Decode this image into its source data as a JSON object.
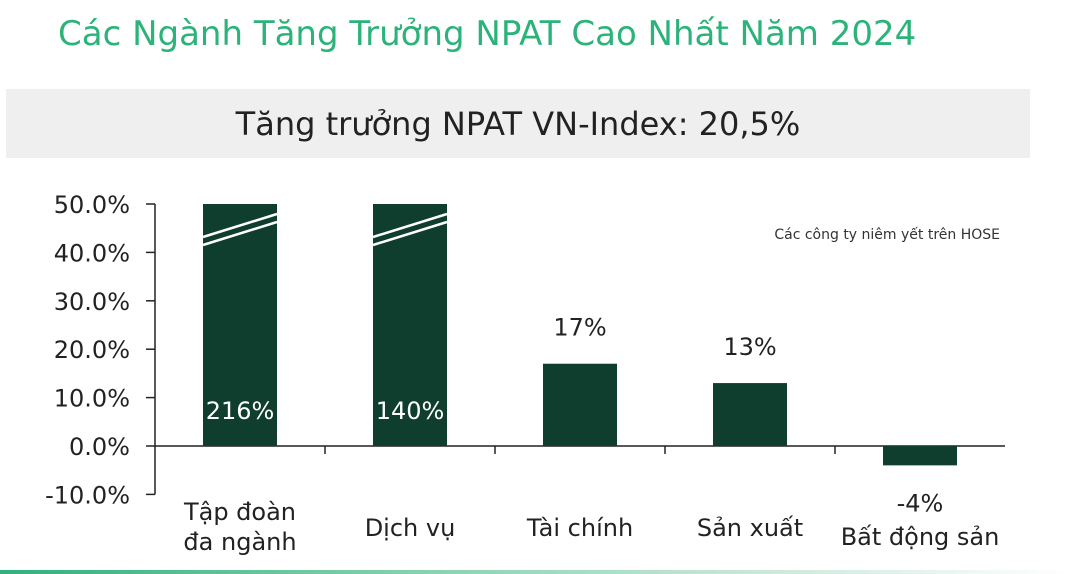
{
  "page": {
    "title": "Các Ngành Tăng Trưởng NPAT Cao Nhất Năm 2024",
    "subtitle": "Tăng trưởng NPAT VN-Index: 20,5%",
    "colors": {
      "title": "#2bb37a",
      "bar": "#0f3d2e",
      "banner": "#efefef"
    }
  },
  "chart_data": {
    "type": "bar",
    "categories": [
      [
        "Tập đoàn",
        "đa ngành"
      ],
      [
        "Dịch vụ"
      ],
      [
        "Tài chính"
      ],
      [
        "Sản xuất"
      ],
      [
        "Bất động sản"
      ]
    ],
    "values": [
      216,
      140,
      17,
      13,
      -4
    ],
    "data_labels": [
      "216%",
      "140%",
      "17%",
      "13%",
      "-4%"
    ],
    "ylim": [
      -10,
      50
    ],
    "yticks": [
      "-10.0%",
      "0.0%",
      "10.0%",
      "20.0%",
      "30.0%",
      "40.0%",
      "50.0%"
    ],
    "ytick_values": [
      -10,
      0,
      10,
      20,
      30,
      40,
      50
    ],
    "truncated": [
      true,
      true,
      false,
      false,
      false
    ],
    "annotation": "Các công ty niêm yết trên HOSE",
    "grid": false
  }
}
